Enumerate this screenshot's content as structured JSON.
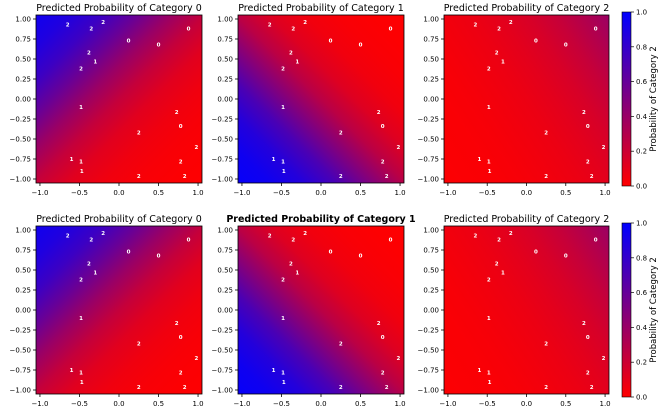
{
  "chart_data": {
    "type": "heatmap",
    "grid_layout": "2x3",
    "colors": {
      "low": "#ff0000",
      "high": "#0000ff",
      "point_label": "#ffffff"
    },
    "xlim": [
      -1.05,
      1.05
    ],
    "ylim": [
      -1.05,
      1.05
    ],
    "xticks": [
      -1.0,
      -0.5,
      0.0,
      0.5,
      1.0
    ],
    "yticks": [
      -1.0,
      -0.75,
      -0.5,
      -0.25,
      0.0,
      0.25,
      0.5,
      0.75,
      1.0
    ],
    "xtick_labels": [
      "−1.0",
      "−0.5",
      "0.0",
      "0.5",
      "1.0"
    ],
    "ytick_labels": [
      "−1.00",
      "−0.75",
      "−0.50",
      "−0.25",
      "0.00",
      "0.25",
      "0.50",
      "0.75",
      "1.00"
    ],
    "points": [
      {
        "x": -0.65,
        "y": 0.93,
        "label": "2"
      },
      {
        "x": -0.35,
        "y": 0.88,
        "label": "2"
      },
      {
        "x": -0.2,
        "y": 0.96,
        "label": "2"
      },
      {
        "x": 0.12,
        "y": 0.73,
        "label": "0"
      },
      {
        "x": 0.5,
        "y": 0.68,
        "label": "0"
      },
      {
        "x": 0.88,
        "y": 0.88,
        "label": "0"
      },
      {
        "x": -0.38,
        "y": 0.58,
        "label": "2"
      },
      {
        "x": -0.3,
        "y": 0.47,
        "label": "1"
      },
      {
        "x": -0.48,
        "y": 0.38,
        "label": "2"
      },
      {
        "x": -0.48,
        "y": -0.1,
        "label": "1"
      },
      {
        "x": 0.73,
        "y": -0.16,
        "label": "2"
      },
      {
        "x": 0.78,
        "y": -0.34,
        "label": "0"
      },
      {
        "x": 0.25,
        "y": -0.42,
        "label": "2"
      },
      {
        "x": 0.98,
        "y": -0.6,
        "label": "2"
      },
      {
        "x": -0.6,
        "y": -0.75,
        "label": "1"
      },
      {
        "x": -0.48,
        "y": -0.78,
        "label": "1"
      },
      {
        "x": 0.78,
        "y": -0.78,
        "label": "2"
      },
      {
        "x": -0.47,
        "y": -0.9,
        "label": "1"
      },
      {
        "x": 0.25,
        "y": -0.96,
        "label": "2"
      },
      {
        "x": 0.83,
        "y": -0.96,
        "label": "2"
      }
    ],
    "panels": [
      {
        "title": "Predicted Probability of Category 0",
        "weights": [
          -0.85,
          0.85,
          -0.55
        ],
        "bold": false
      },
      {
        "title": "Predicted Probability of Category 1",
        "weights": [
          -1.0,
          -1.0,
          -0.45
        ],
        "bold": false
      },
      {
        "title": "Predicted Probability of Category 2",
        "weights": [
          0.55,
          0.35,
          -1.15
        ],
        "bold": false
      },
      {
        "title": "Predicted Probability of Category 0",
        "weights": [
          -0.85,
          0.85,
          -0.55
        ],
        "bold": false
      },
      {
        "title": "Predicted Probability of Category 1",
        "weights": [
          -1.0,
          -1.0,
          -0.45
        ],
        "bold": true
      },
      {
        "title": "Predicted Probability of Category 2",
        "weights": [
          0.55,
          0.35,
          -1.15
        ],
        "bold": false
      }
    ],
    "colorbar": {
      "label": "Probability of Category 2",
      "range": [
        0.0,
        1.0
      ],
      "ticks": [
        "0.0",
        "0.2",
        "0.4",
        "0.6",
        "0.8",
        "1.0"
      ]
    }
  }
}
